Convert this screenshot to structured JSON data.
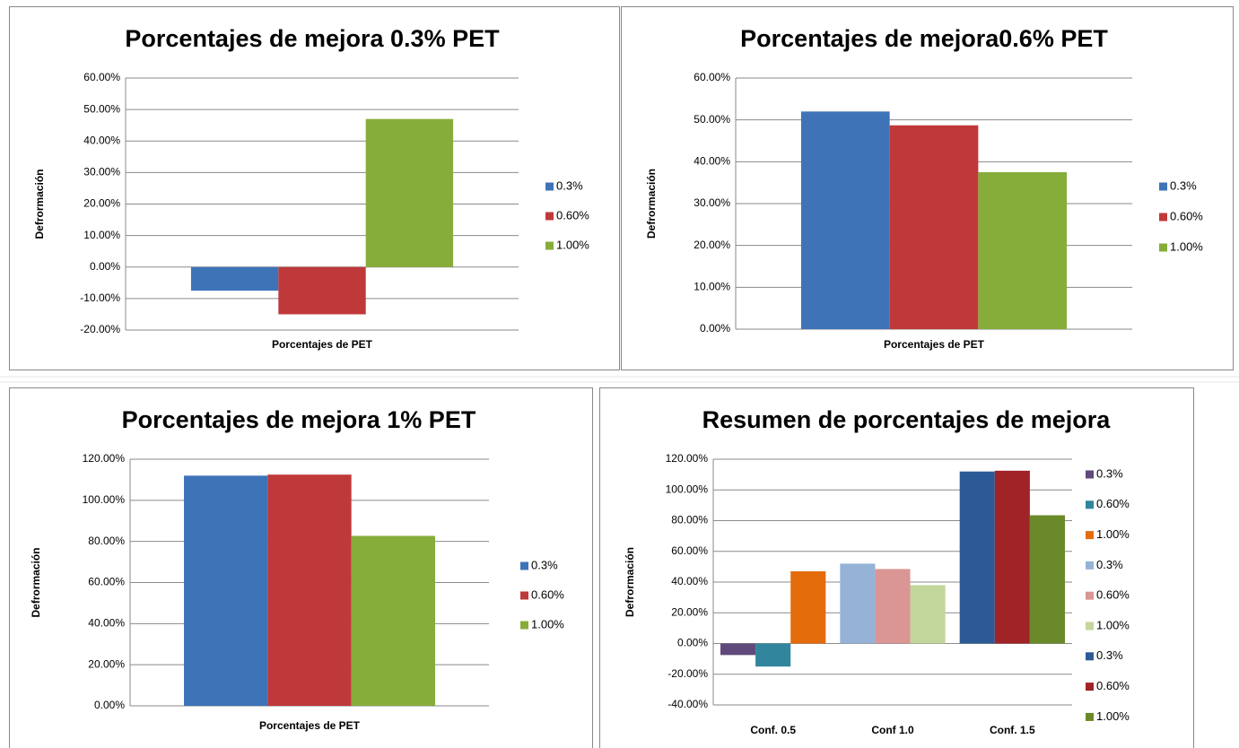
{
  "chart_data": [
    {
      "type": "bar",
      "title": "Porcentajes de mejora 0.3% PET",
      "x_label": "Porcentajes de PET",
      "y_label": "Defrormación",
      "categories": [
        null
      ],
      "series": [
        {
          "name": "0.3%",
          "color": "#3f73b8",
          "values": [
            -7.5
          ]
        },
        {
          "name": "0.60%",
          "color": "#c0393a",
          "values": [
            -15
          ]
        },
        {
          "name": "1.00%",
          "color": "#86ad3a",
          "values": [
            47
          ]
        }
      ],
      "ylim": [
        -20,
        60
      ],
      "yticks": [
        {
          "value": -20,
          "label": "-20.00%"
        },
        {
          "value": -10,
          "label": "-10.00%"
        },
        {
          "value": 0,
          "label": "0.00%"
        },
        {
          "value": 10,
          "label": "10.00%"
        },
        {
          "value": 20,
          "label": "20.00%"
        },
        {
          "value": 30,
          "label": "30.00%"
        },
        {
          "value": 40,
          "label": "40.00%"
        },
        {
          "value": 50,
          "label": "50.00%"
        },
        {
          "value": 60,
          "label": "60.00%"
        }
      ],
      "grid": true,
      "legend": "right"
    },
    {
      "type": "bar",
      "title": "Porcentajes de mejora0.6% PET",
      "x_label": "Porcentajes de PET",
      "y_label": "Defrormación",
      "categories": [
        null
      ],
      "series": [
        {
          "name": "0.3%",
          "color": "#3f73b8",
          "values": [
            52
          ]
        },
        {
          "name": "0.60%",
          "color": "#c0393a",
          "values": [
            48.7
          ]
        },
        {
          "name": "1.00%",
          "color": "#86ad3a",
          "values": [
            37.5
          ]
        }
      ],
      "ylim": [
        0,
        60
      ],
      "yticks": [
        {
          "value": 0,
          "label": "0.00%"
        },
        {
          "value": 10,
          "label": "10.00%"
        },
        {
          "value": 20,
          "label": "20.00%"
        },
        {
          "value": 30,
          "label": "30.00%"
        },
        {
          "value": 40,
          "label": "40.00%"
        },
        {
          "value": 50,
          "label": "50.00%"
        },
        {
          "value": 60,
          "label": "60.00%"
        }
      ],
      "grid": true,
      "legend": "right"
    },
    {
      "type": "bar",
      "title": "Porcentajes de mejora 1% PET",
      "x_label": "Porcentajes de PET",
      "y_label": "Defrormación",
      "categories": [
        null
      ],
      "series": [
        {
          "name": "0.3%",
          "color": "#3f73b8",
          "values": [
            112
          ]
        },
        {
          "name": "0.60%",
          "color": "#c0393a",
          "values": [
            112.5
          ]
        },
        {
          "name": "1.00%",
          "color": "#86ad3a",
          "values": [
            82.7
          ]
        }
      ],
      "ylim": [
        0,
        120
      ],
      "yticks": [
        {
          "value": 0,
          "label": "0.00%"
        },
        {
          "value": 20,
          "label": "20.00%"
        },
        {
          "value": 40,
          "label": "40.00%"
        },
        {
          "value": 60,
          "label": "60.00%"
        },
        {
          "value": 80,
          "label": "80.00%"
        },
        {
          "value": 100,
          "label": "100.00%"
        },
        {
          "value": 120,
          "label": "120.00%"
        }
      ],
      "grid": true,
      "legend": "right"
    },
    {
      "type": "bar",
      "title": "Resumen de porcentajes de mejora",
      "y_label": "Defrormación",
      "categories": [
        "Conf. 0.5",
        "Conf 1.0",
        "Conf. 1.5"
      ],
      "series": [
        {
          "name": "0.3%",
          "color": "#604a7b",
          "values": [
            -7.5,
            null,
            null
          ]
        },
        {
          "name": "0.60%",
          "color": "#31859c",
          "values": [
            -15,
            null,
            null
          ]
        },
        {
          "name": "1.00%",
          "color": "#e46c0a",
          "values": [
            47,
            null,
            null
          ]
        },
        {
          "name": "0.3%",
          "color": "#95b3d7",
          "values": [
            null,
            52,
            null
          ]
        },
        {
          "name": "0.60%",
          "color": "#d99694",
          "values": [
            null,
            48.5,
            null
          ]
        },
        {
          "name": "1.00%",
          "color": "#c3d69b",
          "values": [
            null,
            38,
            null
          ]
        },
        {
          "name": "0.3%",
          "color": "#2c5a96",
          "values": [
            null,
            null,
            112
          ]
        },
        {
          "name": "0.60%",
          "color": "#a02328",
          "values": [
            null,
            null,
            112.5
          ]
        },
        {
          "name": "1.00%",
          "color": "#6a8a2a",
          "values": [
            null,
            null,
            83.5
          ]
        }
      ],
      "ylim": [
        -40,
        120
      ],
      "yticks": [
        {
          "value": -40,
          "label": "-40.00%"
        },
        {
          "value": -20,
          "label": "-20.00%"
        },
        {
          "value": 0,
          "label": "0.00%"
        },
        {
          "value": 20,
          "label": "20.00%"
        },
        {
          "value": 40,
          "label": "40.00%"
        },
        {
          "value": 60,
          "label": "60.00%"
        },
        {
          "value": 80,
          "label": "80.00%"
        },
        {
          "value": 100,
          "label": "100.00%"
        },
        {
          "value": 120,
          "label": "120.00%"
        }
      ],
      "grid": true,
      "legend": "right"
    }
  ]
}
